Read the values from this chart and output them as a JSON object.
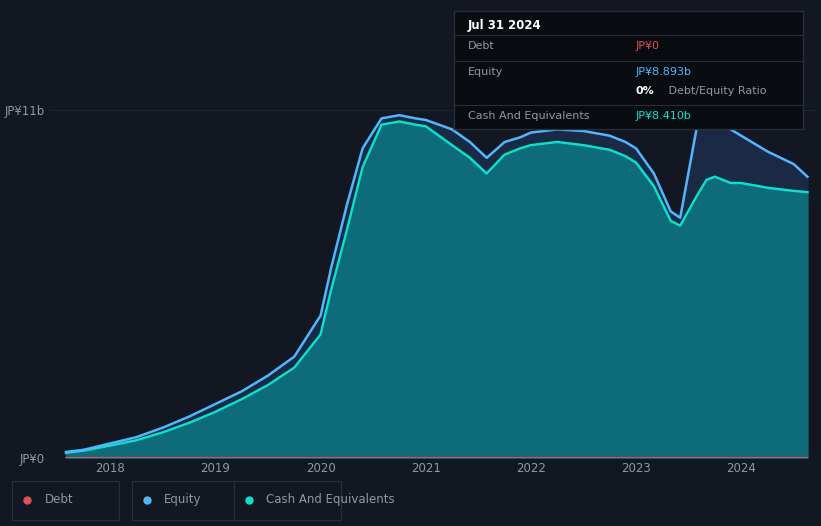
{
  "background_color": "#131722",
  "plot_bg_color": "#131722",
  "grid_color": "#1e2535",
  "text_color": "#9098a1",
  "debt_color": "#e05050",
  "equity_color": "#4db8ff",
  "cash_color": "#00e5cc",
  "fill_cash_color": "#0d6b7a",
  "fill_equity_color": "#1a2a45",
  "ylabel_top": "JP¥11b",
  "ylabel_bottom": "JP¥0",
  "x_ticks": [
    2018,
    2019,
    2020,
    2021,
    2022,
    2023,
    2024
  ],
  "tooltip_date": "Jul 31 2024",
  "tooltip_debt_value": "JP¥0",
  "tooltip_equity_value": "JP¥8.893b",
  "tooltip_ratio": "0% Debt/Equity Ratio",
  "tooltip_cash_value": "JP¥8.410b",
  "legend_labels": [
    "Debt",
    "Equity",
    "Cash And Equivalents"
  ],
  "years": [
    2017.58,
    2017.75,
    2018.0,
    2018.25,
    2018.5,
    2018.75,
    2019.0,
    2019.25,
    2019.5,
    2019.75,
    2020.0,
    2020.1,
    2020.25,
    2020.4,
    2020.58,
    2020.75,
    2020.9,
    2021.0,
    2021.25,
    2021.42,
    2021.58,
    2021.75,
    2021.9,
    2022.0,
    2022.25,
    2022.5,
    2022.75,
    2022.9,
    2023.0,
    2023.17,
    2023.33,
    2023.42,
    2023.58,
    2023.67,
    2023.75,
    2023.9,
    2024.0,
    2024.25,
    2024.5,
    2024.63
  ],
  "equity_values": [
    0.18,
    0.25,
    0.45,
    0.65,
    0.95,
    1.3,
    1.7,
    2.1,
    2.6,
    3.2,
    4.5,
    6.0,
    8.0,
    9.8,
    10.75,
    10.85,
    10.75,
    10.7,
    10.4,
    10.0,
    9.5,
    10.0,
    10.15,
    10.3,
    10.4,
    10.35,
    10.2,
    10.0,
    9.8,
    9.0,
    7.8,
    7.6,
    10.5,
    10.8,
    10.7,
    10.4,
    10.2,
    9.7,
    9.3,
    8.9
  ],
  "cash_values": [
    0.15,
    0.22,
    0.38,
    0.55,
    0.8,
    1.1,
    1.45,
    1.85,
    2.3,
    2.85,
    3.9,
    5.3,
    7.2,
    9.2,
    10.55,
    10.65,
    10.55,
    10.5,
    9.9,
    9.5,
    9.0,
    9.6,
    9.8,
    9.9,
    10.0,
    9.9,
    9.75,
    9.55,
    9.35,
    8.6,
    7.5,
    7.35,
    8.3,
    8.8,
    8.9,
    8.7,
    8.7,
    8.55,
    8.45,
    8.41
  ],
  "debt_values": [
    0.0,
    0.0,
    0.0,
    0.0,
    0.0,
    0.0,
    0.0,
    0.0,
    0.0,
    0.0,
    0.0,
    0.0,
    0.0,
    0.0,
    0.0,
    0.0,
    0.0,
    0.0,
    0.0,
    0.0,
    0.0,
    0.0,
    0.0,
    0.0,
    0.0,
    0.0,
    0.0,
    0.0,
    0.0,
    0.0,
    0.0,
    0.0,
    0.0,
    0.0,
    0.0,
    0.0,
    0.0,
    0.0,
    0.0,
    0.0
  ],
  "ylim": [
    0,
    12.0
  ],
  "xlim": [
    2017.42,
    2024.72
  ]
}
